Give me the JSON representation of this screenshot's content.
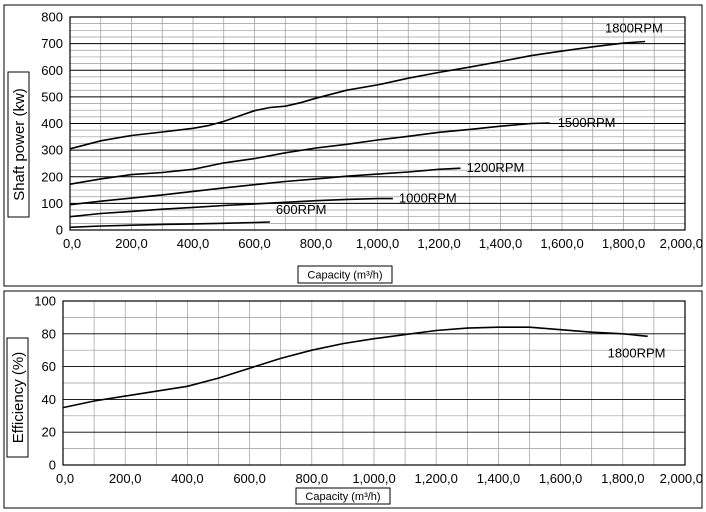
{
  "chart_data": [
    {
      "type": "line",
      "xlabel": "Capacity (m³/h)",
      "ylabel": "Shaft power (kw)",
      "xlim": [
        0,
        2000
      ],
      "ylim": [
        0,
        800
      ],
      "x_ticks": [
        "0,0",
        "200,0",
        "400,0",
        "600,0",
        "800,0",
        "1,000,0",
        "1,200,0",
        "1,400,0",
        "1,600,0",
        "1,800,0",
        "2,000,0"
      ],
      "y_ticks": [
        "0",
        "100",
        "200",
        "300",
        "400",
        "500",
        "600",
        "700",
        "800"
      ],
      "grid": true,
      "series": [
        {
          "name": "1800RPM",
          "x": [
            0,
            100,
            200,
            300,
            400,
            450,
            500,
            550,
            600,
            650,
            700,
            750,
            800,
            900,
            1000,
            1100,
            1200,
            1300,
            1400,
            1500,
            1600,
            1700,
            1800,
            1870
          ],
          "y": [
            305,
            335,
            355,
            368,
            382,
            392,
            408,
            428,
            448,
            460,
            465,
            478,
            495,
            525,
            545,
            570,
            592,
            612,
            633,
            655,
            672,
            688,
            702,
            708
          ]
        },
        {
          "name": "1500RPM",
          "x": [
            0,
            100,
            200,
            300,
            400,
            450,
            500,
            600,
            700,
            800,
            900,
            1000,
            1100,
            1200,
            1300,
            1400,
            1500,
            1560
          ],
          "y": [
            172,
            192,
            208,
            216,
            228,
            240,
            252,
            268,
            290,
            308,
            322,
            338,
            352,
            367,
            378,
            390,
            400,
            402
          ]
        },
        {
          "name": "1200RPM",
          "x": [
            0,
            100,
            200,
            300,
            400,
            500,
            600,
            700,
            800,
            900,
            1000,
            1100,
            1200,
            1270
          ],
          "y": [
            95,
            108,
            120,
            132,
            145,
            158,
            170,
            182,
            192,
            202,
            210,
            218,
            228,
            232
          ]
        },
        {
          "name": "1000RPM",
          "x": [
            0,
            100,
            200,
            300,
            400,
            500,
            600,
            700,
            800,
            900,
            1000,
            1050
          ],
          "y": [
            50,
            62,
            70,
            78,
            85,
            92,
            98,
            104,
            110,
            115,
            118,
            118
          ]
        },
        {
          "name": "600RPM",
          "x": [
            0,
            100,
            200,
            300,
            400,
            500,
            600,
            650
          ],
          "y": [
            10,
            15,
            18,
            21,
            23,
            25,
            28,
            30
          ]
        }
      ]
    },
    {
      "type": "line",
      "xlabel": "Capacity (m³/h)",
      "ylabel": "Efficiency (%)",
      "xlim": [
        0,
        2000
      ],
      "ylim": [
        0,
        100
      ],
      "x_ticks": [
        "0,0",
        "200,0",
        "400,0",
        "600,0",
        "800,0",
        "1,000,0",
        "1,200,0",
        "1,400,0",
        "1,600,0",
        "1,800,0",
        "2,000,0"
      ],
      "y_ticks": [
        "0",
        "20",
        "40",
        "60",
        "80",
        "100"
      ],
      "grid": true,
      "series": [
        {
          "name": "1800RPM",
          "x": [
            0,
            100,
            200,
            300,
            400,
            500,
            600,
            700,
            800,
            900,
            1000,
            1100,
            1200,
            1300,
            1400,
            1500,
            1600,
            1700,
            1800,
            1880
          ],
          "y": [
            35,
            39,
            42,
            45,
            48,
            53,
            59,
            65,
            70,
            74,
            77,
            79.5,
            82,
            83.5,
            84,
            84,
            82.5,
            81,
            80,
            78.5
          ]
        }
      ]
    }
  ]
}
